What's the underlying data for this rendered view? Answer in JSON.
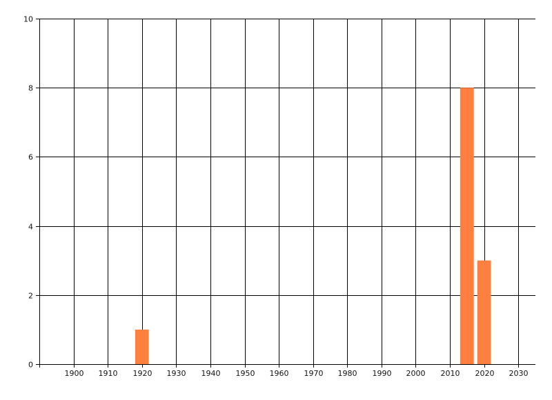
{
  "chart_data": {
    "type": "bar",
    "title": "",
    "xlabel": "",
    "ylabel": "",
    "xlim": [
      1890,
      2035
    ],
    "ylim": [
      0,
      10
    ],
    "x_ticks": [
      1900,
      1910,
      1920,
      1930,
      1940,
      1950,
      1960,
      1970,
      1980,
      1990,
      2000,
      2010,
      2020,
      2030
    ],
    "y_ticks": [
      0,
      2,
      4,
      6,
      8,
      10
    ],
    "grid": true,
    "bar_width_years": 4,
    "bar_color": "#FF7F3F",
    "x": [
      1920,
      2015,
      2020
    ],
    "values": [
      1,
      8,
      3
    ]
  }
}
